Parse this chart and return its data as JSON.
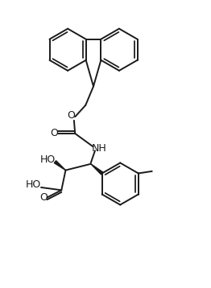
{
  "bg_color": "#ffffff",
  "line_color": "#1a1a1a",
  "line_width": 1.4,
  "figsize": [
    2.62,
    3.58
  ],
  "dpi": 100,
  "xlim": [
    0,
    10
  ],
  "ylim": [
    0,
    13.6
  ]
}
